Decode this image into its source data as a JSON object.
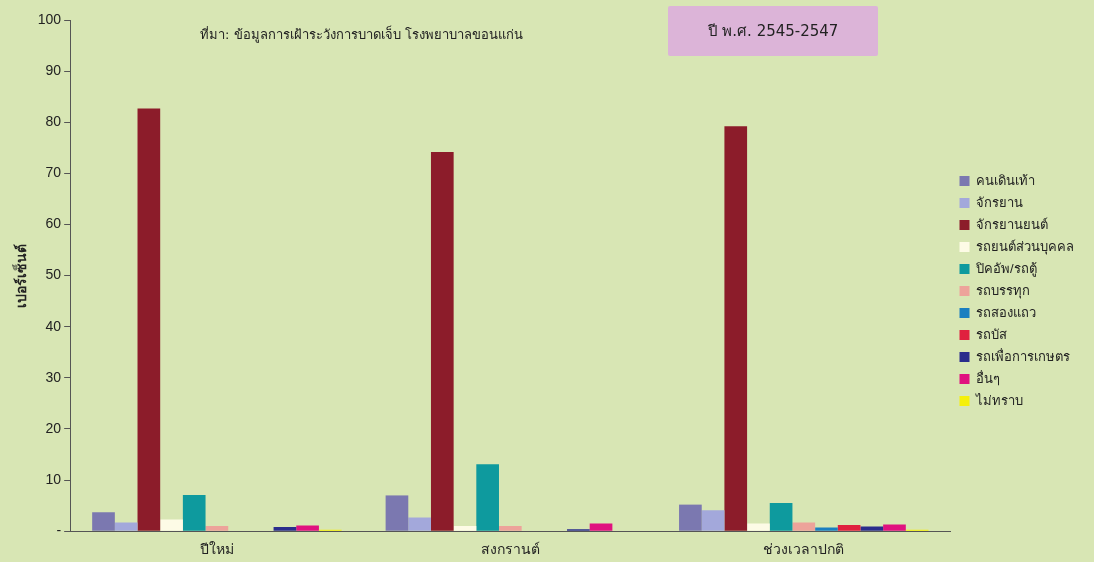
{
  "chart_data": {
    "type": "bar",
    "title": "ปี พ.ศ. 2545-2547",
    "ylabel": "เปอร์เซ็นต์",
    "annotations": [
      "ที่มา: ข้อมูลการเฝ้าระวังการบาดเจ็บ โรงพยาบาลขอนแก่น"
    ],
    "categories": [
      "ปีใหม่",
      "สงกรานต์",
      "ช่วงเวลาปกติ"
    ],
    "series": [
      {
        "name": "คนเดินเท้า",
        "color": "#7b78b0",
        "values": [
          3.7,
          7.0,
          5.2
        ]
      },
      {
        "name": "จักรยาน",
        "color": "#a3a8db",
        "values": [
          1.7,
          2.7,
          4.1
        ]
      },
      {
        "name": "จักรยานยนต์",
        "color": "#8c1c2a",
        "values": [
          82.7,
          74.2,
          79.2
        ]
      },
      {
        "name": "รถยนต์ส่วนบุคคล",
        "color": "#fdfbe6",
        "values": [
          2.3,
          1.0,
          1.5
        ]
      },
      {
        "name": "ปิคอัพ/รถตู้",
        "color": "#0e9a9e",
        "values": [
          7.1,
          13.1,
          5.5
        ]
      },
      {
        "name": "รถบรรทุก",
        "color": "#eda39a",
        "values": [
          1.0,
          1.0,
          1.7
        ]
      },
      {
        "name": "รถสองแถว",
        "color": "#1a7fc0",
        "values": [
          0,
          0,
          0.7
        ]
      },
      {
        "name": "รถบัส",
        "color": "#e0213f",
        "values": [
          0,
          0,
          1.2
        ]
      },
      {
        "name": "รถเพื่อการเกษตร",
        "color": "#2a2d8c",
        "values": [
          0.8,
          0.4,
          0.9
        ]
      },
      {
        "name": "อื่นๆ",
        "color": "#e0127f",
        "values": [
          1.1,
          1.5,
          1.3
        ]
      },
      {
        "name": "ไม่ทราบ",
        "color": "#f5f00a",
        "values": [
          0.3,
          0,
          0.3
        ]
      }
    ],
    "ylim": [
      0,
      100
    ],
    "yticks": [
      {
        "value": 0,
        "label": "-"
      },
      10,
      20,
      30,
      40,
      50,
      60,
      70,
      80,
      90,
      100
    ],
    "grid": false,
    "legend": "right"
  }
}
